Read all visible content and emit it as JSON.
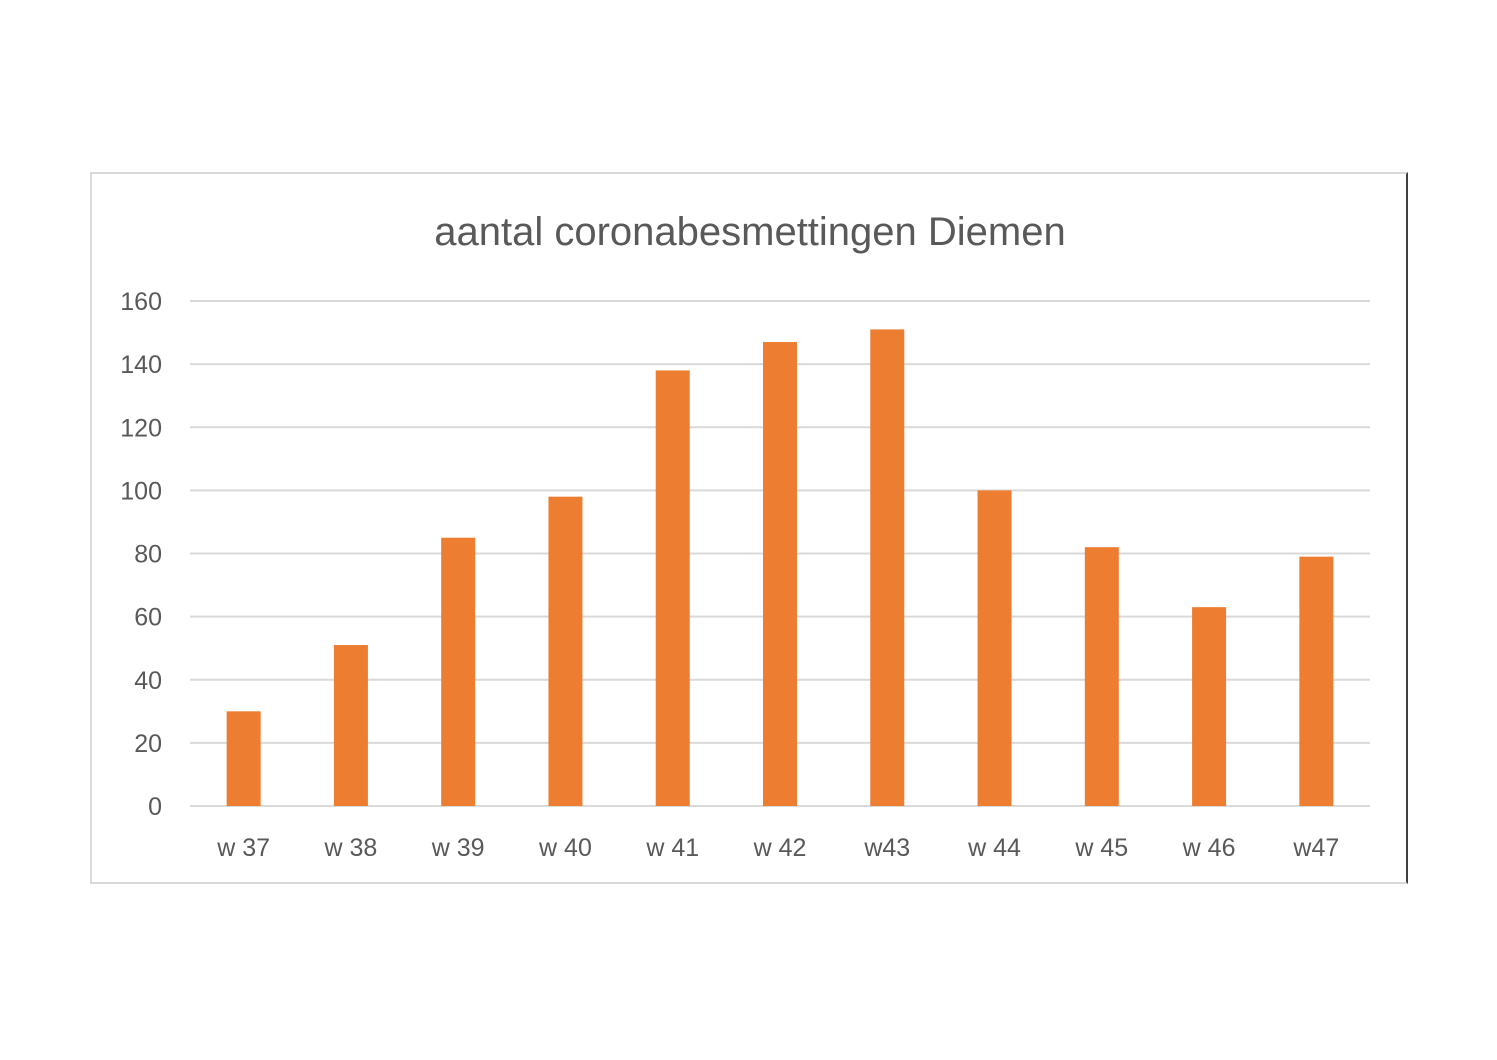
{
  "chart_data": {
    "type": "bar",
    "title": "aantal coronabesmettingen Diemen",
    "xlabel": "",
    "ylabel": "",
    "categories": [
      "w 37",
      "w 38",
      "w 39",
      "w 40",
      "w 41",
      "w 42",
      "w43",
      "w 44",
      "w 45",
      "w 46",
      "w47"
    ],
    "values": [
      30,
      51,
      85,
      98,
      138,
      147,
      151,
      100,
      82,
      63,
      79
    ],
    "ylim": [
      0,
      160
    ],
    "yticks": [
      "0",
      "20",
      "40",
      "60",
      "80",
      "100",
      "120",
      "140",
      "160"
    ],
    "grid": true,
    "legend": "none",
    "bar_color": "#ed7d31"
  }
}
